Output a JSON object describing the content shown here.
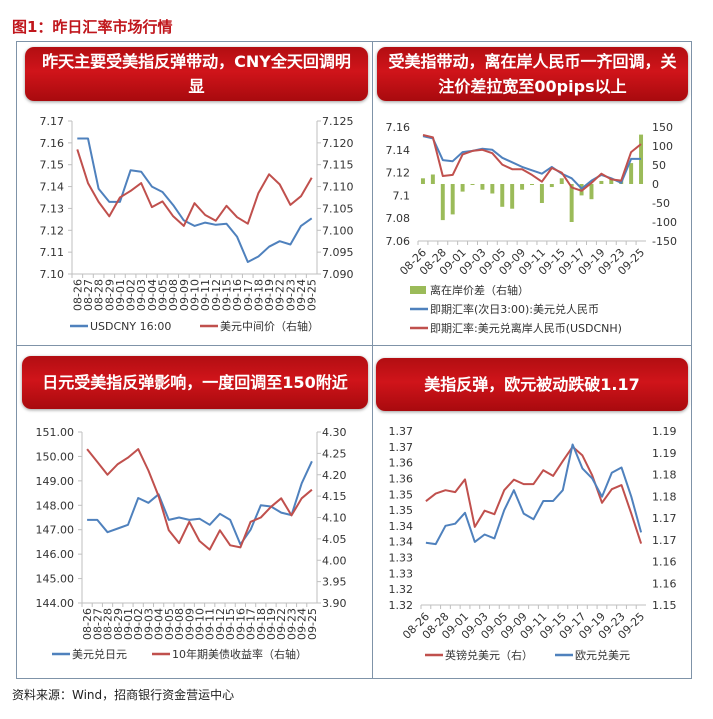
{
  "figure_title": "图1：昨日汇率市场行情",
  "footer": "资料来源：Wind，招商银行资金营运中心",
  "colors": {
    "blue": "#4f81bd",
    "red": "#c0504d",
    "green": "#9bbb59",
    "banner": "#c0141a",
    "title": "#c0161c"
  },
  "chart_data": [
    {
      "type": "line",
      "title": "昨天主要受美指反弹带动，CNY全天回调明显",
      "categories": [
        "08-26",
        "08-27",
        "08-28",
        "08-29",
        "09-01",
        "09-02",
        "09-03",
        "09-04",
        "09-05",
        "09-08",
        "09-09",
        "09-10",
        "09-11",
        "09-12",
        "09-15",
        "09-16",
        "09-17",
        "09-18",
        "09-19",
        "09-22",
        "09-23",
        "09-24",
        "09-25"
      ],
      "y_left": {
        "ylim": [
          7.1,
          7.17
        ],
        "ticks": [
          "7.17",
          "7.16",
          "7.15",
          "7.14",
          "7.13",
          "7.12",
          "7.11",
          "7.10"
        ]
      },
      "y_right": {
        "ylim": [
          7.09,
          7.125
        ],
        "ticks": [
          "7.125",
          "7.120",
          "7.115",
          "7.110",
          "7.105",
          "7.100",
          "7.095",
          "7.090"
        ]
      },
      "series": [
        {
          "name": "USDCNY 16:00",
          "axis": "left",
          "color": "#4f81bd",
          "values": [
            7.162,
            7.162,
            7.139,
            7.133,
            7.133,
            7.1475,
            7.1468,
            7.14,
            7.1375,
            7.1315,
            7.1245,
            7.122,
            7.1235,
            7.1225,
            7.123,
            7.117,
            7.1055,
            7.108,
            7.1125,
            7.115,
            7.1135,
            7.122,
            7.1255
          ]
        },
        {
          "name": "美元中间价（右轴）",
          "axis": "right",
          "color": "#c0504d",
          "values": [
            7.1185,
            7.1108,
            7.1065,
            7.1032,
            7.1075,
            7.109,
            7.1108,
            7.1053,
            7.1066,
            7.1032,
            7.101,
            7.1062,
            7.1035,
            7.1022,
            7.1056,
            7.103,
            7.1015,
            7.1085,
            7.1128,
            7.1105,
            7.1058,
            7.1078,
            7.112
          ]
        }
      ],
      "grid": false,
      "legend": "bottom"
    },
    {
      "type": "bar+line",
      "title": "受美指带动，离在岸人民币一齐回调，关注价差拉宽至00pips以上",
      "categories": [
        "08-26",
        "08-27",
        "08-28",
        "08-29",
        "09-01",
        "09-02",
        "09-03",
        "09-04",
        "09-05",
        "09-08",
        "09-09",
        "09-10",
        "09-11",
        "09-12",
        "09-15",
        "09-16",
        "09-17",
        "09-18",
        "09-19",
        "09-22",
        "09-23",
        "09-24",
        "09-25"
      ],
      "y_left": {
        "ylim": [
          7.06,
          7.16
        ],
        "ticks": [
          "7.16",
          "7.14",
          "7.12",
          "7.1",
          "7.08",
          "7.06"
        ]
      },
      "y_right": {
        "ylim": [
          -150,
          150
        ],
        "ticks": [
          "150",
          "100",
          "50",
          "0",
          "-50",
          "-100",
          "-150"
        ]
      },
      "series": [
        {
          "name": "离在岸价差（右轴）",
          "kind": "bar",
          "axis": "right",
          "color": "#9bbb59",
          "values": [
            15,
            25,
            -95,
            -80,
            -20,
            -2,
            -15,
            -25,
            -60,
            -65,
            -15,
            -2,
            -50,
            -8,
            15,
            -100,
            -30,
            -40,
            8,
            15,
            10,
            55,
            130
          ]
        },
        {
          "name": "即期汇率(次日3:00):美元兑人民币",
          "axis": "left",
          "color": "#4f81bd",
          "values": [
            7.152,
            7.15,
            7.131,
            7.13,
            7.138,
            7.139,
            7.141,
            7.14,
            7.133,
            7.129,
            7.125,
            7.122,
            7.119,
            7.125,
            7.119,
            7.115,
            7.106,
            7.113,
            7.118,
            7.115,
            7.111,
            7.132,
            7.132
          ]
        },
        {
          "name": "即期汇率:美元兑离岸人民币(USDCNH)",
          "axis": "left",
          "color": "#c0504d",
          "values": [
            7.153,
            7.151,
            7.117,
            7.118,
            7.136,
            7.139,
            7.14,
            7.137,
            7.127,
            7.123,
            7.123,
            7.118,
            7.112,
            7.124,
            7.12,
            7.107,
            7.104,
            7.111,
            7.119,
            7.114,
            7.113,
            7.138,
            7.145
          ]
        }
      ],
      "grid": false,
      "legend": "bottom"
    },
    {
      "type": "line",
      "title": "日元受美指反弹影响，一度回调至150附近",
      "categories": [
        "08-26",
        "08-27",
        "08-28",
        "08-29",
        "09-01",
        "09-02",
        "09-03",
        "09-04",
        "09-05",
        "09-08",
        "09-09",
        "09-10",
        "09-11",
        "09-12",
        "09-15",
        "09-16",
        "09-17",
        "09-18",
        "09-19",
        "09-22",
        "09-23",
        "09-24",
        "09-25"
      ],
      "y_left": {
        "ylim": [
          144,
          151
        ],
        "ticks": [
          "151.00",
          "150.00",
          "149.00",
          "148.00",
          "147.00",
          "146.00",
          "145.00",
          "144.00"
        ]
      },
      "y_right": {
        "ylim": [
          3.9,
          4.3
        ],
        "ticks": [
          "4.30",
          "4.25",
          "4.20",
          "4.15",
          "4.10",
          "4.05",
          "4.00",
          "3.95",
          "3.90"
        ]
      },
      "series": [
        {
          "name": "美元兑日元",
          "axis": "left",
          "color": "#4f81bd",
          "values": [
            147.4,
            147.4,
            146.9,
            147.05,
            147.2,
            148.3,
            148.1,
            148.45,
            147.4,
            147.5,
            147.4,
            147.45,
            147.2,
            147.65,
            147.4,
            146.4,
            147.0,
            148.0,
            147.95,
            147.7,
            147.6,
            148.9,
            149.8
          ]
        },
        {
          "name": "10年期美债收益率（右轴）",
          "axis": "right",
          "color": "#c0504d",
          "values": [
            4.26,
            4.23,
            4.2,
            4.225,
            4.24,
            4.26,
            4.21,
            4.15,
            4.07,
            4.04,
            4.09,
            4.045,
            4.025,
            4.07,
            4.035,
            4.03,
            4.09,
            4.1,
            4.125,
            4.145,
            4.105,
            4.145,
            4.165
          ]
        }
      ],
      "grid": false,
      "legend": "bottom"
    },
    {
      "type": "line",
      "title": "美指反弹，欧元被动跌破1.17",
      "categories": [
        "08-26",
        "08-27",
        "08-28",
        "08-29",
        "09-01",
        "09-02",
        "09-03",
        "09-04",
        "09-05",
        "09-08",
        "09-09",
        "09-10",
        "09-11",
        "09-12",
        "09-15",
        "09-16",
        "09-17",
        "09-18",
        "09-19",
        "09-22",
        "09-23",
        "09-24",
        "09-25"
      ],
      "y_left": {
        "ylim": [
          1.3175,
          1.3725
        ],
        "ticks": [
          "1.37",
          "1.37",
          "1.36",
          "1.36",
          "1.35",
          "1.35",
          "1.34",
          "1.34",
          "1.33",
          "1.33",
          "1.32",
          "1.32"
        ]
      },
      "y_right": {
        "ylim": [
          1.1525,
          1.1925
        ],
        "ticks": [
          "1.19",
          "1.19",
          "1.18",
          "1.18",
          "1.17",
          "1.17",
          "1.16",
          "1.16",
          "1.15"
        ]
      },
      "series": [
        {
          "name": "英镑兑美元（右）",
          "axis": "left",
          "color": "#c0504d",
          "values": [
            1.3503,
            1.3527,
            1.3538,
            1.3532,
            1.3572,
            1.3422,
            1.3473,
            1.3462,
            1.3538,
            1.3571,
            1.3557,
            1.3557,
            1.3601,
            1.3583,
            1.363,
            1.3675,
            1.3648,
            1.3585,
            1.3498,
            1.3541,
            1.3554,
            1.3464,
            1.3369
          ]
        },
        {
          "name": "欧元兑美元",
          "axis": "right",
          "color": "#4f81bd",
          "values": [
            1.1668,
            1.1665,
            1.1707,
            1.1712,
            1.1737,
            1.167,
            1.1687,
            1.1678,
            1.1743,
            1.1789,
            1.1735,
            1.1722,
            1.1764,
            1.1764,
            1.1789,
            1.1894,
            1.1839,
            1.1816,
            1.1774,
            1.1829,
            1.1841,
            1.1774,
            1.1692
          ]
        }
      ],
      "grid": false,
      "legend": "bottom"
    }
  ]
}
